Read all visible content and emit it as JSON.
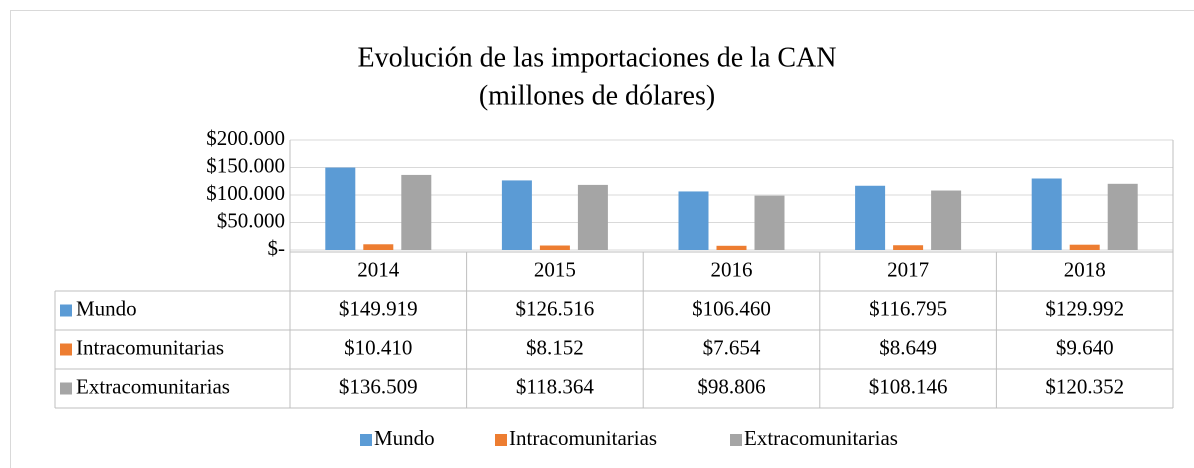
{
  "chart_data": {
    "type": "bar",
    "title": "Evolución de las importaciones de la CAN",
    "subtitle": "(millones de dólares)",
    "categories": [
      "2014",
      "2015",
      "2016",
      "2017",
      "2018"
    ],
    "series": [
      {
        "name": "Mundo",
        "color": "#5b9bd5",
        "values": [
          149919,
          126516,
          106460,
          116795,
          129992
        ],
        "value_labels": [
          "$149.919",
          "$126.516",
          "$106.460",
          "$116.795",
          "$129.992"
        ]
      },
      {
        "name": "Intracomunitarias",
        "color": "#ed7d31",
        "values": [
          10410,
          8152,
          7654,
          8649,
          9640
        ],
        "value_labels": [
          "$10.410",
          "$8.152",
          "$7.654",
          "$8.649",
          "$9.640"
        ]
      },
      {
        "name": "Extracomunitarias",
        "color": "#a5a5a5",
        "values": [
          136509,
          118364,
          98806,
          108146,
          120352
        ],
        "value_labels": [
          "$136.509",
          "$118.364",
          "$98.806",
          "$108.146",
          "$120.352"
        ]
      }
    ],
    "ylim": [
      0,
      200000
    ],
    "yticks": [
      {
        "value": 0,
        "label": "$-"
      },
      {
        "value": 50000,
        "label": "$50.000"
      },
      {
        "value": 100000,
        "label": "$100.000"
      },
      {
        "value": 150000,
        "label": "$150.000"
      },
      {
        "value": 200000,
        "label": "$200.000"
      }
    ],
    "grid": true,
    "legend": "bottom"
  }
}
